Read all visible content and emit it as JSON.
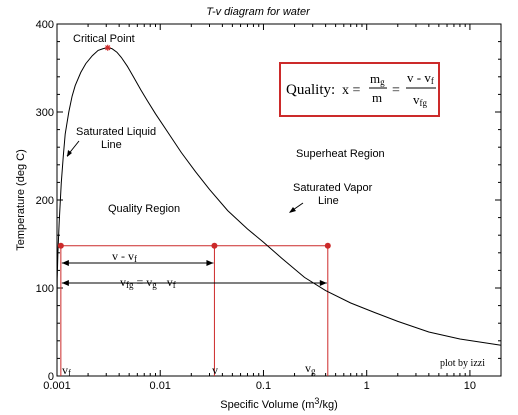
{
  "chart_data": {
    "type": "line",
    "title": "T-v diagram for water",
    "xlabel": "Specific Volume (m3/kg)",
    "xlabel_parts": {
      "main": "Specific Volume (m",
      "sup": "3",
      "end": "/kg)"
    },
    "ylabel": "Temperature (deg C)",
    "x_scale": "log",
    "xlim": [
      0.001,
      20
    ],
    "ylim": [
      0,
      400
    ],
    "x_ticks": [
      {
        "value": 0.001,
        "label": "0.001"
      },
      {
        "value": 0.01,
        "label": "0.01"
      },
      {
        "value": 0.1,
        "label": "0.1"
      },
      {
        "value": 1,
        "label": "1"
      },
      {
        "value": 10,
        "label": "10"
      }
    ],
    "y_ticks": [
      {
        "value": 0,
        "label": "0"
      },
      {
        "value": 100,
        "label": "100"
      },
      {
        "value": 200,
        "label": "200"
      },
      {
        "value": 300,
        "label": "300"
      },
      {
        "value": 400,
        "label": "400"
      }
    ],
    "series": [
      {
        "color": "#000000",
        "x": [
          0.001,
          0.001005,
          0.00102,
          0.00105,
          0.0011,
          0.00115,
          0.0012,
          0.0013,
          0.0014,
          0.0015,
          0.0017,
          0.0019,
          0.0022,
          0.0025,
          0.0028,
          0.0031,
          0.0034,
          0.0038,
          0.0042,
          0.0048,
          0.0055,
          0.0065,
          0.0075,
          0.009,
          0.012,
          0.016,
          0.022,
          0.03,
          0.045,
          0.07,
          0.1,
          0.15,
          0.25,
          0.4,
          0.7,
          1.2,
          2,
          4,
          8,
          20
        ],
        "y": [
          45,
          110,
          140,
          175,
          220,
          250,
          275,
          300,
          318,
          330,
          345,
          355,
          364,
          370,
          372,
          373,
          372,
          368,
          362,
          352,
          340,
          325,
          313,
          298,
          276,
          254,
          232,
          212,
          188,
          167,
          152,
          134,
          112,
          97,
          83,
          72,
          62,
          50,
          42,
          35
        ]
      }
    ],
    "points": [
      {
        "x": 0.00109,
        "y": 148,
        "color": "#cc2a2a"
      },
      {
        "x": 0.0335,
        "y": 148,
        "color": "#cc2a2a"
      },
      {
        "x": 0.42,
        "y": 148,
        "color": "#cc2a2a"
      }
    ],
    "critical_point": {
      "label": "Critical Point",
      "x": 0.0031,
      "y": 373,
      "color": "#cc2a2a"
    },
    "red_color": "#cc2a2a",
    "guide_lines": [
      {
        "x": 0.00109,
        "label": "vf"
      },
      {
        "x": 0.0335,
        "label": "v"
      },
      {
        "x": 0.42,
        "label": "vg"
      }
    ],
    "annotations": {
      "sat_liquid": [
        "Saturated Liquid",
        "Line"
      ],
      "sat_vapor": [
        "Saturated Vapor",
        "Line"
      ],
      "superheat": "Superheat Region",
      "quality_region": "Quality Region",
      "v_minus_vf": "v - vf",
      "vfg_formula": "vfg = vg - vf"
    },
    "quality_box": {
      "label": "Quality:",
      "x_eq": "x =",
      "mg": "mg",
      "m": "m",
      "eq": "=",
      "num": "v - vf",
      "den": "vfg",
      "border_color": "#cc2a2a"
    },
    "credit": {
      "text": "plot by izzi",
      "color": "#3388cc"
    }
  }
}
